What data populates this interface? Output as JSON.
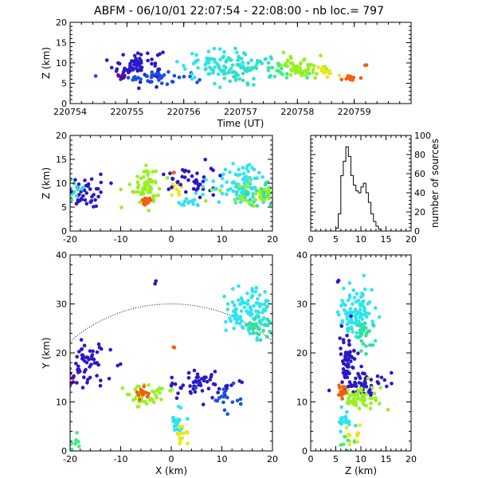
{
  "figure": {
    "title": "ABFM - 06/10/01 22:07:54 - 22:08:00 - nb loc.=     797"
  },
  "chart_data": [
    {
      "id": "time_height",
      "type": "scatter",
      "title": "",
      "xlabel": "Time (UT)",
      "ylabel": "Z (km)",
      "xlim": [
        220754,
        220760
      ],
      "ylim": [
        0,
        20
      ],
      "xticks": [
        "220754",
        "220755",
        "220756",
        "220757",
        "220758",
        "220759"
      ],
      "yticks": [
        "0",
        "5",
        "10",
        "15",
        "20"
      ],
      "clusters": [
        {
          "x": 220755.2,
          "y": 9.5,
          "sx": 0.22,
          "sy": 2.0,
          "n": 70,
          "color": "#2b18c8"
        },
        {
          "x": 220755.5,
          "y": 6.5,
          "sx": 0.3,
          "sy": 0.8,
          "n": 35,
          "color": "#1a4fe0"
        },
        {
          "x": 220754.9,
          "y": 6.8,
          "sx": 0.05,
          "sy": 0.4,
          "n": 8,
          "color": "#5a0c9a"
        },
        {
          "x": 220756.5,
          "y": 9.5,
          "sx": 0.3,
          "sy": 1.8,
          "n": 60,
          "color": "#2ee4ee"
        },
        {
          "x": 220757.1,
          "y": 8.5,
          "sx": 0.35,
          "sy": 1.7,
          "n": 70,
          "color": "#30e0c8"
        },
        {
          "x": 220757.8,
          "y": 8.0,
          "sx": 0.2,
          "sy": 1.0,
          "n": 20,
          "color": "#38f080"
        },
        {
          "x": 220758.1,
          "y": 9.0,
          "sx": 0.18,
          "sy": 1.3,
          "n": 55,
          "color": "#98f020"
        },
        {
          "x": 220758.5,
          "y": 8.0,
          "sx": 0.08,
          "sy": 0.6,
          "n": 12,
          "color": "#e8e818"
        },
        {
          "x": 220758.95,
          "y": 6.3,
          "sx": 0.06,
          "sy": 0.3,
          "n": 14,
          "color": "#f06010"
        },
        {
          "x": 220759.2,
          "y": 9.5,
          "sx": 0.02,
          "sy": 0.1,
          "n": 2,
          "color": "#f06010"
        }
      ]
    },
    {
      "id": "x_z",
      "type": "scatter",
      "title": "",
      "xlabel": "",
      "ylabel": "Z (km)",
      "xlim": [
        -20,
        20
      ],
      "ylim": [
        0,
        20
      ],
      "xticks": [
        "-20",
        "-10",
        "0",
        "10",
        "20"
      ],
      "yticks": [
        "0",
        "5",
        "10",
        "15",
        "20"
      ],
      "clusters": [
        {
          "x": -17,
          "y": 8.0,
          "sx": 2.0,
          "sy": 1.8,
          "n": 45,
          "color": "#2b18c8"
        },
        {
          "x": -19,
          "y": 8.5,
          "sx": 0.8,
          "sy": 1.5,
          "n": 12,
          "color": "#30e0c8"
        },
        {
          "x": -5,
          "y": 9.5,
          "sx": 1.5,
          "sy": 2.0,
          "n": 60,
          "color": "#98f020"
        },
        {
          "x": -5,
          "y": 6.3,
          "sx": 0.6,
          "sy": 0.4,
          "n": 15,
          "color": "#f06010"
        },
        {
          "x": 1,
          "y": 8.5,
          "sx": 0.6,
          "sy": 0.8,
          "n": 10,
          "color": "#e8e818"
        },
        {
          "x": 4,
          "y": 10.5,
          "sx": 2.5,
          "sy": 1.8,
          "n": 40,
          "color": "#2b18c8"
        },
        {
          "x": 3,
          "y": 6.3,
          "sx": 1.5,
          "sy": 0.6,
          "n": 15,
          "color": "#2ee4ee"
        },
        {
          "x": 14,
          "y": 9.5,
          "sx": 3.5,
          "sy": 2.2,
          "n": 90,
          "color": "#2ee4ee"
        },
        {
          "x": 17,
          "y": 8.0,
          "sx": 2.0,
          "sy": 1.5,
          "n": 30,
          "color": "#30e0a0"
        },
        {
          "x": 16,
          "y": 7.5,
          "sx": 3.0,
          "sy": 1.2,
          "n": 30,
          "color": "#98f020"
        },
        {
          "x": 0.5,
          "y": 12.5,
          "sx": 0.1,
          "sy": 0.2,
          "n": 2,
          "color": "#f06010"
        }
      ]
    },
    {
      "id": "z_histogram",
      "type": "line",
      "title": "",
      "xlabel": "",
      "ylabel": "number of sources",
      "xlim": [
        0,
        20
      ],
      "ylim": [
        0,
        100
      ],
      "xticks": [
        "0",
        "5",
        "10",
        "15",
        "20"
      ],
      "yticks": [
        "0",
        "20",
        "40",
        "60",
        "80",
        "100"
      ],
      "x": [
        4.5,
        5.0,
        5.5,
        6.0,
        6.5,
        7.0,
        7.5,
        8.0,
        8.5,
        9.0,
        9.5,
        10.0,
        10.5,
        11.0,
        11.5,
        12.0,
        12.5,
        13.0,
        13.5,
        14.0
      ],
      "y": [
        0,
        3,
        18,
        58,
        73,
        88,
        78,
        58,
        48,
        42,
        40,
        46,
        50,
        40,
        30,
        18,
        10,
        5,
        2,
        0
      ]
    },
    {
      "id": "x_y",
      "type": "scatter",
      "title": "",
      "xlabel": "X (km)",
      "ylabel": "Y (km)",
      "xlim": [
        -20,
        20
      ],
      "ylim": [
        0,
        40
      ],
      "xticks": [
        "-20",
        "-10",
        "0",
        "10",
        "20"
      ],
      "yticks": [
        "0",
        "10",
        "20",
        "30",
        "40"
      ],
      "range_circle_km": 30,
      "clusters": [
        {
          "x": -17,
          "y": 17.5,
          "sx": 2.5,
          "sy": 2.5,
          "n": 55,
          "color": "#2b18c8"
        },
        {
          "x": -19.5,
          "y": 14.0,
          "sx": 0.5,
          "sy": 0.8,
          "n": 6,
          "color": "#5a0c9a"
        },
        {
          "x": -5,
          "y": 11.5,
          "sx": 2.0,
          "sy": 1.3,
          "n": 45,
          "color": "#98f020"
        },
        {
          "x": -5.5,
          "y": 11.8,
          "sx": 0.7,
          "sy": 0.8,
          "n": 15,
          "color": "#f06010"
        },
        {
          "x": 6,
          "y": 13.5,
          "sx": 3.0,
          "sy": 1.2,
          "n": 55,
          "color": "#2b18c8"
        },
        {
          "x": 1.5,
          "y": 6.0,
          "sx": 0.8,
          "sy": 1.2,
          "n": 18,
          "color": "#2ee4ee"
        },
        {
          "x": 2.0,
          "y": 3.0,
          "sx": 0.5,
          "sy": 1.2,
          "n": 15,
          "color": "#e8e818"
        },
        {
          "x": 15.5,
          "y": 28.5,
          "sx": 2.5,
          "sy": 2.5,
          "n": 100,
          "color": "#2ee4ee"
        },
        {
          "x": 17,
          "y": 25,
          "sx": 1.5,
          "sy": 2.0,
          "n": 30,
          "color": "#30e0a0"
        },
        {
          "x": 11,
          "y": 10.5,
          "sx": 2.5,
          "sy": 1.5,
          "n": 18,
          "color": "#1a4fe0"
        },
        {
          "x": -19,
          "y": 1.5,
          "sx": 1.0,
          "sy": 1.2,
          "n": 10,
          "color": "#38f080"
        },
        {
          "x": -3,
          "y": 34.5,
          "sx": 0.1,
          "sy": 0.2,
          "n": 2,
          "color": "#2b18c8"
        },
        {
          "x": 0.5,
          "y": 21,
          "sx": 0.1,
          "sy": 0.2,
          "n": 2,
          "color": "#f06010"
        }
      ]
    },
    {
      "id": "z_y",
      "type": "scatter",
      "title": "",
      "xlabel": "Z (km)",
      "ylabel": "",
      "xlim": [
        0,
        20
      ],
      "ylim": [
        0,
        40
      ],
      "xticks": [
        "0",
        "5",
        "10",
        "15",
        "20"
      ],
      "yticks": [
        "0",
        "10",
        "20",
        "30",
        "40"
      ],
      "clusters": [
        {
          "x": 9.0,
          "y": 28.5,
          "sx": 1.6,
          "sy": 2.8,
          "n": 100,
          "color": "#2ee4ee"
        },
        {
          "x": 10.5,
          "y": 24.0,
          "sx": 1.0,
          "sy": 2.0,
          "n": 30,
          "color": "#30e0a0"
        },
        {
          "x": 7.5,
          "y": 18.5,
          "sx": 1.0,
          "sy": 2.8,
          "n": 55,
          "color": "#2b18c8"
        },
        {
          "x": 10.0,
          "y": 13.5,
          "sx": 2.2,
          "sy": 1.3,
          "n": 55,
          "color": "#2b18c8"
        },
        {
          "x": 9.5,
          "y": 11.0,
          "sx": 2.0,
          "sy": 1.2,
          "n": 50,
          "color": "#98f020"
        },
        {
          "x": 6.3,
          "y": 11.8,
          "sx": 0.4,
          "sy": 0.9,
          "n": 15,
          "color": "#f06010"
        },
        {
          "x": 7.0,
          "y": 6.0,
          "sx": 1.0,
          "sy": 1.2,
          "n": 18,
          "color": "#2ee4ee"
        },
        {
          "x": 8.5,
          "y": 3.0,
          "sx": 0.8,
          "sy": 1.2,
          "n": 15,
          "color": "#e8e818"
        },
        {
          "x": 6.5,
          "y": 2.0,
          "sx": 0.8,
          "sy": 1.5,
          "n": 8,
          "color": "#38f080"
        },
        {
          "x": 5.5,
          "y": 34.5,
          "sx": 0.1,
          "sy": 0.2,
          "n": 2,
          "color": "#2b18c8"
        }
      ]
    }
  ]
}
